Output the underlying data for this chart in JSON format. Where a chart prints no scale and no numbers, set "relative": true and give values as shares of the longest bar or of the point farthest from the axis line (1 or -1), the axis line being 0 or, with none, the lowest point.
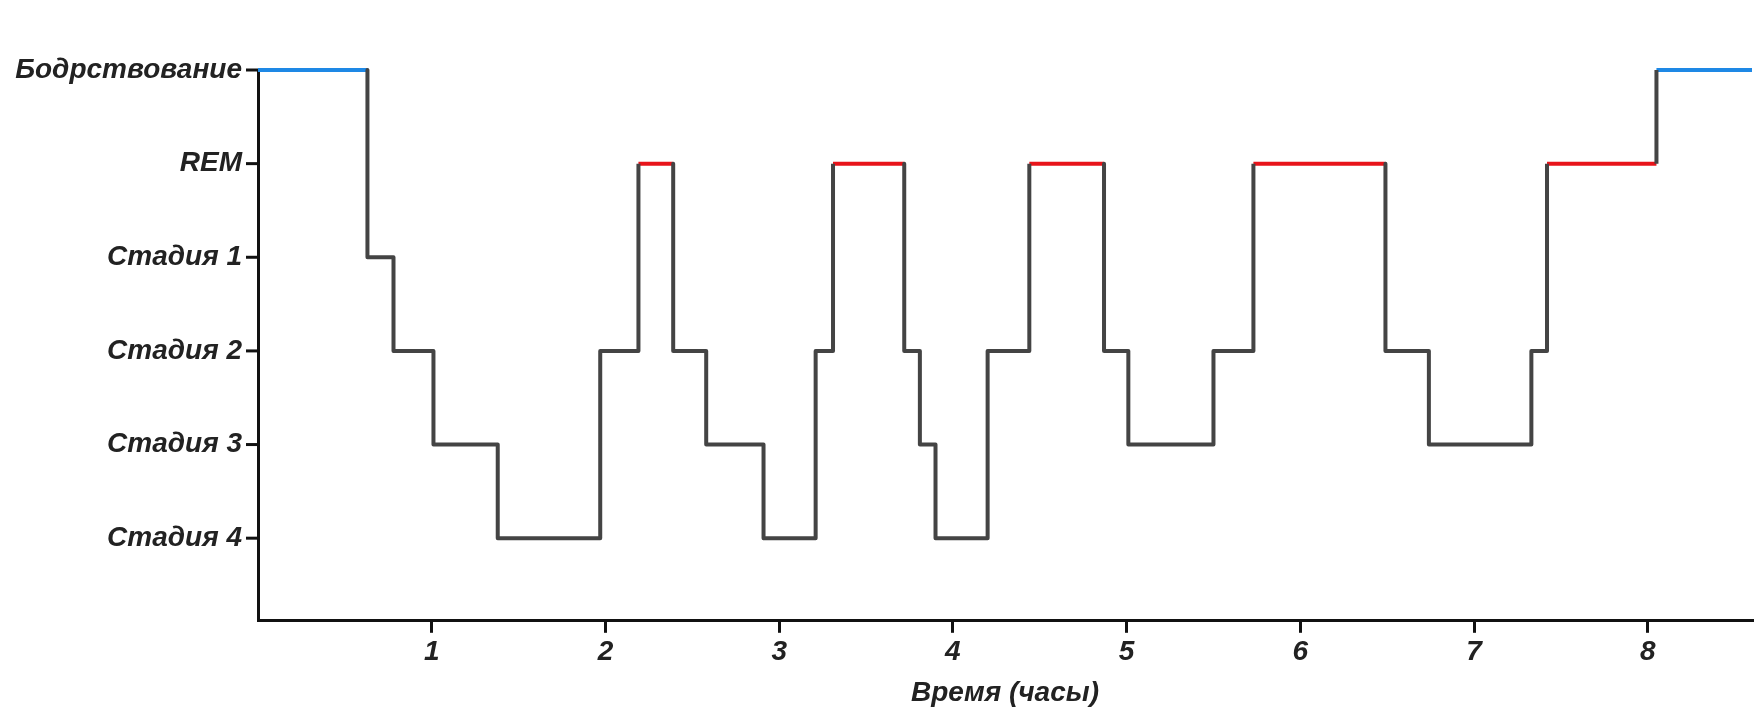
{
  "chart_data": {
    "type": "line",
    "xlabel": "Время (часы)",
    "relative": true,
    "series": [
      {
        "color": "#444444",
        "x": [
          0.63,
          0.63,
          0.78,
          0.78,
          1.01,
          1.01,
          1.38,
          1.38,
          1.97,
          1.97,
          2.19,
          2.19,
          null,
          2.39,
          2.39,
          2.58,
          2.58,
          2.91,
          2.91,
          3.21,
          3.21,
          3.31,
          3.31,
          null,
          3.72,
          3.72,
          3.81,
          3.81,
          3.9,
          3.9,
          4.2,
          4.2,
          4.44,
          4.44,
          null,
          4.87,
          4.87,
          5.01,
          5.01,
          5.5,
          5.5,
          5.73,
          5.73,
          null,
          6.49,
          6.49,
          6.74,
          6.74,
          7.33,
          7.33,
          7.42,
          7.42,
          null,
          8.05,
          8.05
        ],
        "values": [
          1,
          0.66,
          0.66,
          0.49,
          0.49,
          0.32,
          0.32,
          0.15,
          0.15,
          0.49,
          0.49,
          0.83,
          null,
          0.83,
          0.49,
          0.49,
          0.32,
          0.32,
          0.15,
          0.15,
          0.49,
          0.49,
          0.83,
          null,
          0.83,
          0.49,
          0.49,
          0.32,
          0.32,
          0.15,
          0.15,
          0.49,
          0.49,
          0.83,
          null,
          0.83,
          0.49,
          0.49,
          0.32,
          0.32,
          0.49,
          0.49,
          0.83,
          null,
          0.83,
          0.49,
          0.49,
          0.32,
          0.32,
          0.49,
          0.49,
          0.83,
          null,
          0.83,
          1
        ]
      },
      {
        "color": "#e8141a",
        "x": [
          2.19,
          2.39,
          null,
          3.31,
          3.72,
          null,
          4.44,
          4.87,
          null,
          5.73,
          6.49,
          null,
          7.42,
          8.05
        ],
        "values": [
          0.83,
          0.83,
          null,
          0.83,
          0.83,
          null,
          0.83,
          0.83,
          null,
          0.83,
          0.83,
          null,
          0.83,
          0.83
        ]
      },
      {
        "color": "#1e88e5",
        "x": [
          0,
          0.63,
          null,
          8.05,
          8.6
        ],
        "values": [
          1,
          1,
          null,
          1,
          1
        ]
      }
    ],
    "xlim": [
      0,
      8.6
    ],
    "xticks": [
      1,
      2,
      3,
      4,
      5,
      6,
      7,
      8
    ],
    "annotations": [
      "Бодрствование",
      "REM",
      "Стадия 1",
      "Стадия 2",
      "Стадия 3",
      "Стадия 4"
    ]
  }
}
